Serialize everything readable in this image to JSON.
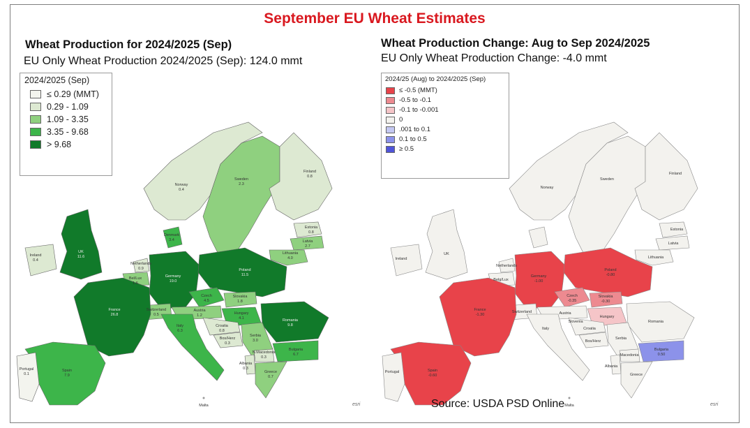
{
  "main_title": "September EU Wheat Estimates",
  "left_panel": {
    "title": "Wheat Production for 2024/2025 (Sep)",
    "subtitle": "EU Only Wheat Production 2024/2025 (Sep): 124.0 mmt",
    "legend": {
      "title": "2024/2025 (Sep)",
      "items": [
        {
          "label": "≤ 0.29 (MMT)",
          "color": "#f3f4ee"
        },
        {
          "label": "0.29 - 1.09",
          "color": "#dde9d2"
        },
        {
          "label": "1.09 - 3.35",
          "color": "#8fd07f"
        },
        {
          "label": "3.35 - 9.68",
          "color": "#3db54a"
        },
        {
          "label": "> 9.68",
          "color": "#117a2a"
        }
      ]
    },
    "labels": {
      "norway": "Norway",
      "norway_val": "0.4",
      "sweden": "Sweden",
      "sweden_val": "2.3",
      "finland": "Finland",
      "finland_val": "0.8",
      "estonia": "Estonia",
      "estonia_val": "0.8",
      "latvia": "Latvia",
      "latvia_val": "2.7",
      "lithuania": "Lithuania",
      "lithuania_val": "4.0",
      "denmark": "Denmark",
      "denmark_val": "3.4",
      "ireland": "Ireland",
      "ireland_val": "0.4",
      "uk": "UK",
      "uk_val": "11.6",
      "netherlands": "Netherlands",
      "netherlands_val": "0.9",
      "beluxlux": "Bel/Lux",
      "beluxlux_val": "1.6",
      "germany": "Germany",
      "germany_val": "19.0",
      "poland": "Poland",
      "poland_val": "11.5",
      "czech": "Czech",
      "czech_val": "4.5",
      "slovakia": "Slovakia",
      "slovakia_val": "1.8",
      "austria": "Austria",
      "austria_val": "1.2",
      "hungary": "Hungary",
      "hungary_val": "4.1",
      "switzerland": "Switzerland",
      "switzerland_val": "0.5",
      "france": "France",
      "france_val": "26.8",
      "italy": "Italy",
      "italy_val": "6.3",
      "croatia": "Croatia",
      "croatia_val": "0.8",
      "bosherz": "Bos/Herz",
      "bosherz_val": "0.3",
      "serbia": "Serbia",
      "serbia_val": "3.0",
      "romania": "Romania",
      "romania_val": "9.8",
      "bulgaria": "Bulgaria",
      "bulgaria_val": "6.7",
      "nmacedonia": "N.Macedonia",
      "nmacedonia_val": "0.3",
      "albania": "Albania",
      "albania_val": "0.3",
      "greece": "Greece",
      "greece_val": "0.7",
      "portugal": "Portugal",
      "portugal_val": "0.1",
      "spain": "Spain",
      "spain_val": "7.9",
      "malta": "Malta"
    }
  },
  "right_panel": {
    "title": "Wheat Production Change: Aug to Sep 2024/2025",
    "subtitle": "EU Only Wheat Production Change: -4.0 mmt",
    "legend": {
      "title": "2024/25 (Aug) to 2024/2025 (Sep)",
      "items": [
        {
          "label": "≤ -0.5 (MMT)",
          "color": "#e8434a"
        },
        {
          "label": "-0.5 to -0.1",
          "color": "#ed8a90"
        },
        {
          "label": "-0.1  to -0.001",
          "color": "#f5c5c8"
        },
        {
          "label": "0",
          "color": "#f3f2ee"
        },
        {
          "label": ".001 to 0.1",
          "color": "#c4c8f2"
        },
        {
          "label": "0.1 to 0.5",
          "color": "#8c92ea"
        },
        {
          "label": "≥ 0.5",
          "color": "#4f54d9"
        }
      ]
    },
    "labels": {
      "norway": "Norway",
      "sweden": "Sweden",
      "finland": "Finland",
      "estonia": "Estonia",
      "latvia": "Latvia",
      "lithuania": "Lithuania",
      "ireland": "Ireland",
      "uk": "UK",
      "netherlands": "Netherlands",
      "beluxlux": "Belg/Lux",
      "germany": "Germany",
      "germany_val": "-1.00",
      "poland": "Poland",
      "poland_val": "-0.80",
      "czech": "Czech",
      "czech_val": "-0.35",
      "slovakia": "Slovakia",
      "slovakia_val": "-0.30",
      "austria": "Austria",
      "hungary": "Hungary",
      "switzerland": "Switzerland",
      "france": "France",
      "france_val": "-1.30",
      "italy": "Italy",
      "slovenia": "Slovenia",
      "croatia": "Croatia",
      "bosherz": "Bos/Herz",
      "serbia": "Serbia",
      "romania": "Romania",
      "bulgaria": "Bulgaria",
      "bulgaria_val": "0.50",
      "macedonia": "Macedonia",
      "albania": "Albania",
      "greece": "Greece",
      "portugal": "Portugal",
      "spain": "Spain",
      "spain_val": "-0.60",
      "malta": "Malta"
    }
  },
  "source": "Source: USDA PSD Online",
  "esri": "esri"
}
